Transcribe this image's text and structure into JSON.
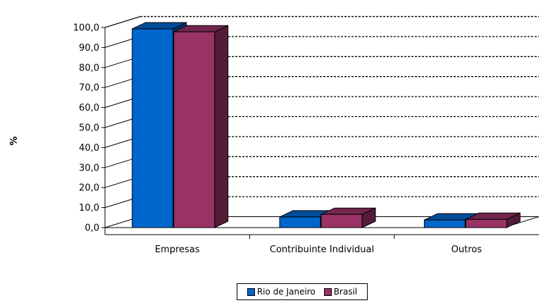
{
  "chart_data": {
    "type": "bar",
    "title": "",
    "xlabel": "",
    "ylabel": "%",
    "ylim": [
      0,
      100
    ],
    "yticks": [
      "0,0",
      "10,0",
      "20,0",
      "30,0",
      "40,0",
      "50,0",
      "60,0",
      "70,0",
      "80,0",
      "90,0",
      "100,0"
    ],
    "categories": [
      "Empresas",
      "Contribuinte Individual",
      "Outros"
    ],
    "series": [
      {
        "name": "Rio de Janeiro",
        "values": [
          96.5,
          2.5,
          1.0
        ],
        "color": "#0066cc"
      },
      {
        "name": "Brasil",
        "values": [
          95.0,
          3.8,
          1.3
        ],
        "color": "#993366"
      }
    ],
    "grid": "dotted horizontal",
    "legend": "bottom-center",
    "style": "3d clustered columns"
  }
}
